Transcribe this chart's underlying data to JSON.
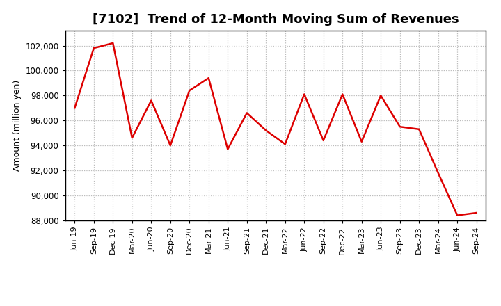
{
  "title": "[7102]  Trend of 12-Month Moving Sum of Revenues",
  "ylabel": "Amount (million yen)",
  "line_color": "#dd0000",
  "background_color": "#ffffff",
  "grid_color": "#bbbbbb",
  "ylim": [
    88000,
    103200
  ],
  "yticks": [
    88000,
    90000,
    92000,
    94000,
    96000,
    98000,
    100000,
    102000
  ],
  "x_labels": [
    "Jun-19",
    "Sep-19",
    "Dec-19",
    "Mar-20",
    "Jun-20",
    "Sep-20",
    "Dec-20",
    "Mar-21",
    "Jun-21",
    "Sep-21",
    "Dec-21",
    "Mar-22",
    "Jun-22",
    "Sep-22",
    "Dec-22",
    "Mar-23",
    "Jun-23",
    "Sep-23",
    "Dec-23",
    "Mar-24",
    "Jun-24",
    "Sep-24"
  ],
  "values": [
    97000,
    101800,
    102200,
    94600,
    97600,
    94000,
    98400,
    99400,
    93700,
    96600,
    95200,
    94100,
    98100,
    94400,
    98100,
    94300,
    98000,
    95500,
    95300,
    91800,
    88400,
    88600
  ],
  "title_fontsize": 13,
  "ylabel_fontsize": 9,
  "tick_fontsize": 8.5,
  "xtick_fontsize": 8
}
